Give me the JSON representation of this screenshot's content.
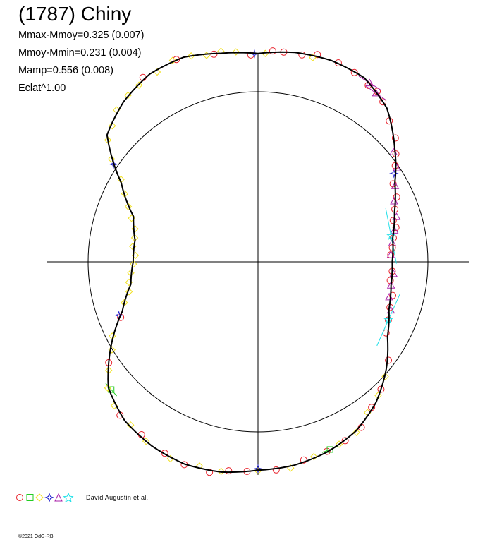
{
  "title": "(1787) Chiny",
  "stats": [
    "Mmax-Mmoy=0.325 (0.007)",
    "Mmoy-Mmin=0.231 (0.004)",
    "Mamp=0.556 (0.008)",
    "Eclat^1.00"
  ],
  "legend_label": "David Augustin et al.",
  "copyright": "©2021 OdG-RB",
  "colors": {
    "axes": "#000000",
    "curve": "#000000",
    "red": "#e8202a",
    "green": "#22cc22",
    "yellow": "#f0e020",
    "blue": "#2222cc",
    "purple": "#aa22aa",
    "cyan": "#22e0e8"
  },
  "chart_data": {
    "type": "polar",
    "reference_circle_radius": 1.0,
    "curve_type": "closed",
    "curve": [
      {
        "angle_deg": 0,
        "r": 0.79
      },
      {
        "angle_deg": 10,
        "r": 0.805
      },
      {
        "angle_deg": 20,
        "r": 0.855
      },
      {
        "angle_deg": 30,
        "r": 0.93
      },
      {
        "angle_deg": 40,
        "r": 1.05
      },
      {
        "angle_deg": 50,
        "r": 1.18
      },
      {
        "angle_deg": 60,
        "r": 1.25
      },
      {
        "angle_deg": 70,
        "r": 1.26
      },
      {
        "angle_deg": 80,
        "r": 1.25
      },
      {
        "angle_deg": 90,
        "r": 1.225
      },
      {
        "angle_deg": 100,
        "r": 1.245
      },
      {
        "angle_deg": 110,
        "r": 1.28
      },
      {
        "angle_deg": 120,
        "r": 1.275
      },
      {
        "angle_deg": 130,
        "r": 1.23
      },
      {
        "angle_deg": 140,
        "r": 1.16
      },
      {
        "angle_deg": 150,
        "r": 0.93
      },
      {
        "angle_deg": 160,
        "r": 0.78
      },
      {
        "angle_deg": 170,
        "r": 0.735
      },
      {
        "angle_deg": 180,
        "r": 0.735
      },
      {
        "angle_deg": 190,
        "r": 0.76
      },
      {
        "angle_deg": 200,
        "r": 0.85
      },
      {
        "angle_deg": 210,
        "r": 1.0
      },
      {
        "angle_deg": 220,
        "r": 1.15
      },
      {
        "angle_deg": 230,
        "r": 1.22
      },
      {
        "angle_deg": 240,
        "r": 1.25
      },
      {
        "angle_deg": 250,
        "r": 1.265
      },
      {
        "angle_deg": 260,
        "r": 1.255
      },
      {
        "angle_deg": 270,
        "r": 1.225
      },
      {
        "angle_deg": 280,
        "r": 1.215
      },
      {
        "angle_deg": 290,
        "r": 1.19
      },
      {
        "angle_deg": 300,
        "r": 1.15
      },
      {
        "angle_deg": 310,
        "r": 1.08
      },
      {
        "angle_deg": 320,
        "r": 0.985
      },
      {
        "angle_deg": 330,
        "r": 0.88
      },
      {
        "angle_deg": 340,
        "r": 0.82
      },
      {
        "angle_deg": 350,
        "r": 0.795
      }
    ],
    "observations": [
      {
        "series": "red-circle",
        "angles_deg": [
          3,
          6,
          10,
          14,
          17,
          21,
          25,
          30,
          35,
          38,
          42,
          47,
          52,
          55,
          58,
          63,
          68,
          74,
          78,
          83,
          86,
          92,
          102,
          112,
          122,
          202,
          214,
          228,
          236,
          244,
          250,
          257,
          262,
          267,
          275,
          283,
          290,
          296,
          302,
          308,
          314,
          323,
          331,
          336,
          341,
          346,
          352,
          356
        ]
      },
      {
        "series": "green-square",
        "angles_deg": [
          221,
          291
        ]
      },
      {
        "series": "yellow-diamond",
        "angles_deg": [
          75,
          88,
          96,
          100,
          104,
          108,
          113,
          118,
          124,
          128,
          133,
          137,
          141,
          145,
          149,
          153,
          157,
          161,
          165,
          169,
          173,
          177,
          181,
          185,
          189,
          193,
          197,
          207,
          211,
          216,
          220,
          225,
          232,
          238,
          246,
          254,
          260,
          270,
          279,
          286,
          294,
          300,
          306,
          312,
          318
        ]
      },
      {
        "series": "blue-star4",
        "angles_deg": [
          33,
          91,
          146,
          201,
          270
        ]
      },
      {
        "series": "purple-triangle",
        "angles_deg": [
          3,
          8,
          13,
          18,
          24,
          29,
          34,
          39,
          55,
          58,
          340,
          345,
          350,
          355
        ]
      },
      {
        "series": "cyan-star5",
        "angles_deg": [
          11,
          336
        ]
      }
    ]
  }
}
